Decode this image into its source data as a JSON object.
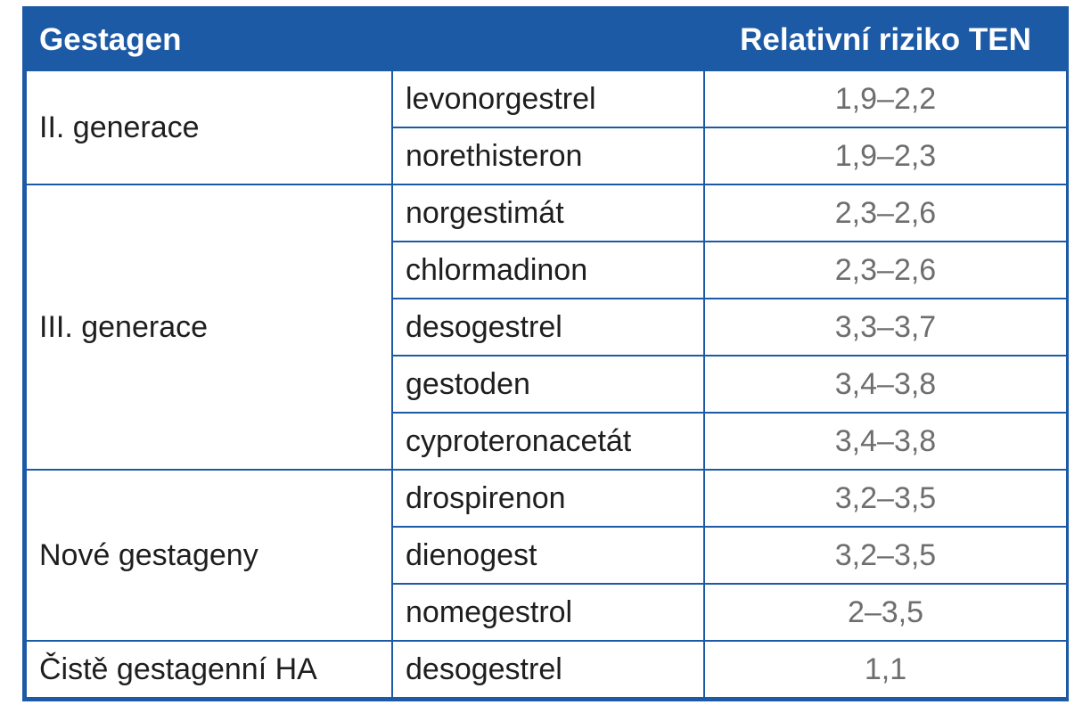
{
  "header": {
    "col1": "Gestagen",
    "col3": "Relativní riziko TEN"
  },
  "groups": [
    {
      "label": "II. generace",
      "rows": [
        {
          "name": "levonorgestrel",
          "risk": "1,9–2,2"
        },
        {
          "name": "norethisteron",
          "risk": "1,9–2,3"
        }
      ]
    },
    {
      "label": "III. generace",
      "rows": [
        {
          "name": "norgestimát",
          "risk": "2,3–2,6"
        },
        {
          "name": "chlormadinon",
          "risk": "2,3–2,6"
        },
        {
          "name": "desogestrel",
          "risk": "3,3–3,7"
        },
        {
          "name": "gestoden",
          "risk": "3,4–3,8"
        },
        {
          "name": "cyproteronacetát",
          "risk": "3,4–3,8"
        }
      ]
    },
    {
      "label": "Nové gestageny",
      "rows": [
        {
          "name": "drospirenon",
          "risk": "3,2–3,5"
        },
        {
          "name": "dienogest",
          "risk": "3,2–3,5"
        },
        {
          "name": "nomegestrol",
          "risk": "2–3,5"
        }
      ]
    },
    {
      "label": "Čistě gestagenní HA",
      "rows": [
        {
          "name": "desogestrel",
          "risk": "1,1"
        }
      ]
    }
  ],
  "colors": {
    "header_bg": "#1d5aa6",
    "border": "#1d5aa6"
  }
}
